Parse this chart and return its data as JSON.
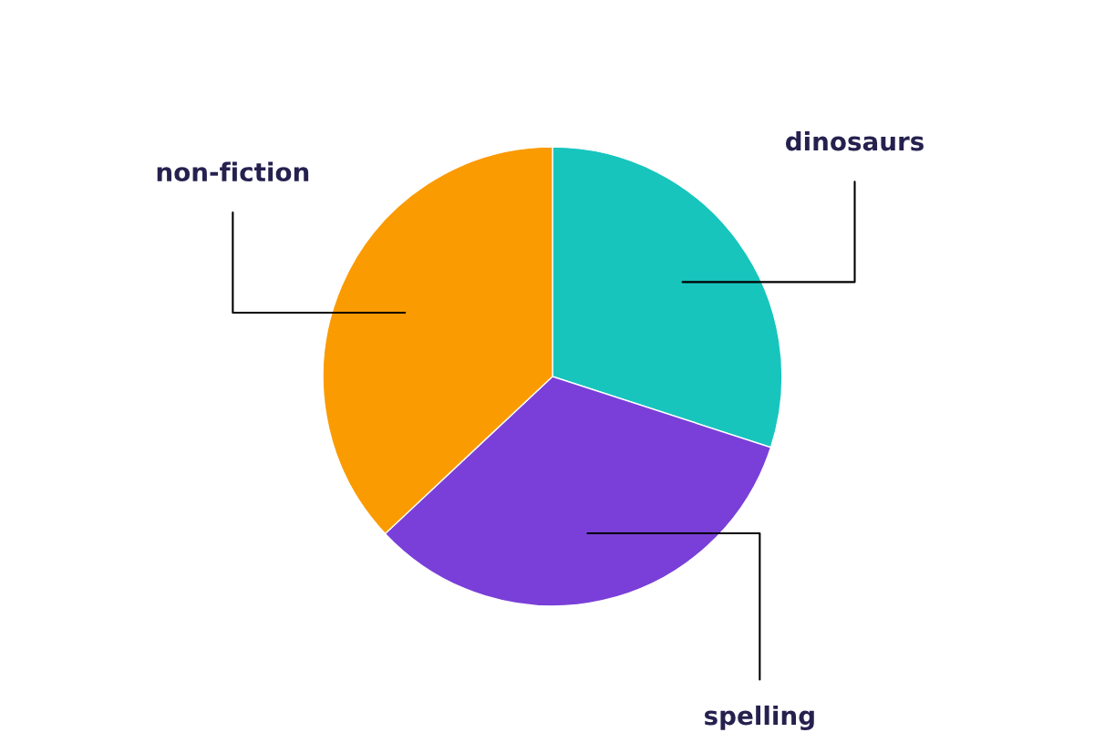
{
  "chart_data": {
    "type": "pie",
    "categories": [
      "dinosaurs",
      "spelling",
      "non-fiction"
    ],
    "values": [
      30,
      33,
      37
    ],
    "colors": [
      "#17c5bd",
      "#7a3fd8",
      "#fb9b02"
    ]
  }
}
